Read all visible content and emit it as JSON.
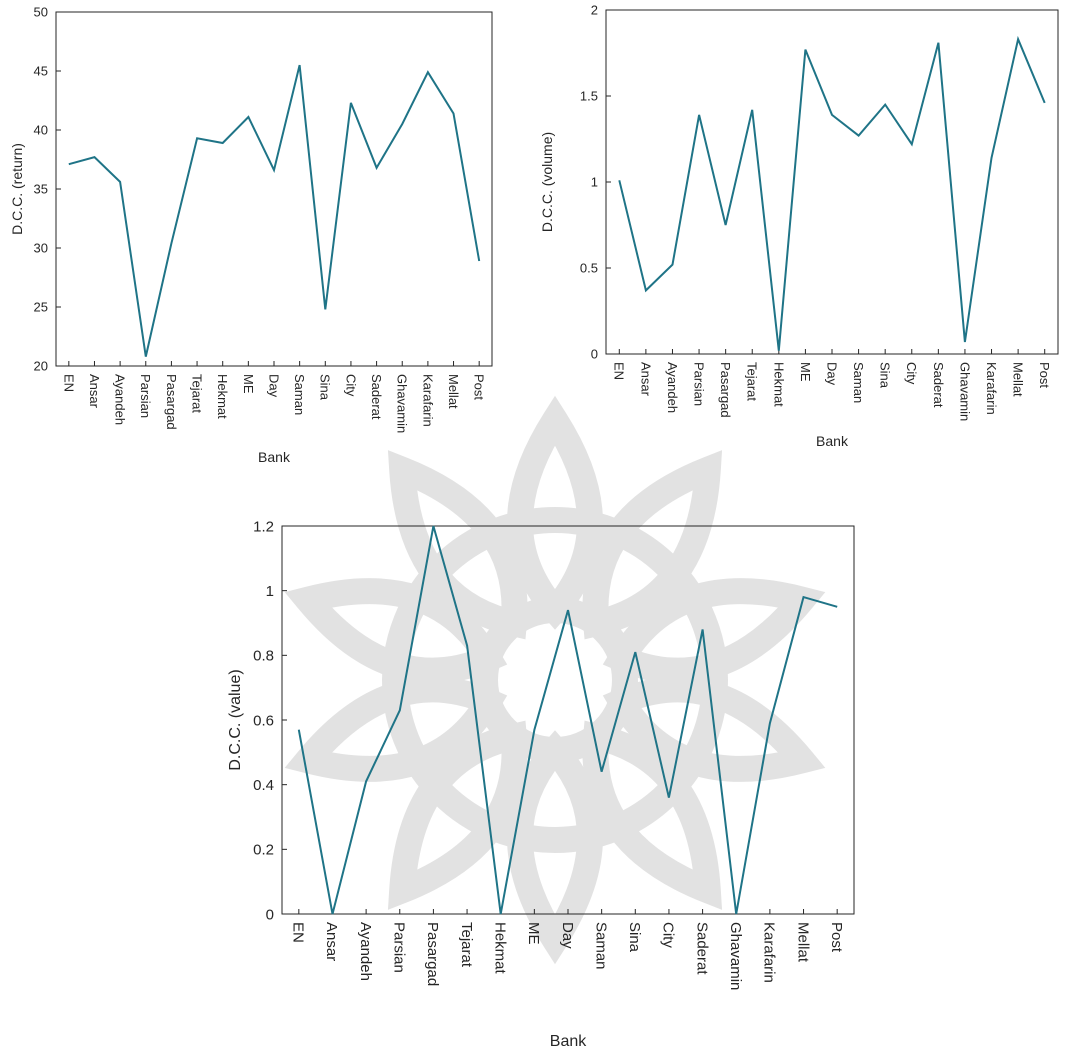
{
  "chart_data": [
    {
      "type": "line",
      "xlabel": "Bank",
      "ylabel": "D.C.C. (return)",
      "categories": [
        "EN",
        "Ansar",
        "Ayandeh",
        "Parsian",
        "Pasargad",
        "Tejarat",
        "Hekmat",
        "ME",
        "Day",
        "Saman",
        "Sina",
        "City",
        "Saderat",
        "Ghavamin",
        "Karafarin",
        "Mellat",
        "Post"
      ],
      "values": [
        37.1,
        37.7,
        35.6,
        20.8,
        30.4,
        39.3,
        38.9,
        41.1,
        36.6,
        45.5,
        24.8,
        42.3,
        36.8,
        40.5,
        44.9,
        41.4,
        28.9
      ],
      "ylim": [
        20,
        50
      ],
      "yticks": [
        "20",
        "25",
        "30",
        "35",
        "40",
        "45",
        "50"
      ],
      "line_color": "#1f7487",
      "grid": false
    },
    {
      "type": "line",
      "xlabel": "Bank",
      "ylabel": "D.C.C. (volume)",
      "categories": [
        "EN",
        "Ansar",
        "Ayandeh",
        "Parsian",
        "Pasargad",
        "Tejarat",
        "Hekmat",
        "ME",
        "Day",
        "Saman",
        "Sina",
        "City",
        "Saderat",
        "Ghavamin",
        "Karafarin",
        "Mellat",
        "Post"
      ],
      "values": [
        1.01,
        0.37,
        0.52,
        1.39,
        0.75,
        1.42,
        0.02,
        1.77,
        1.39,
        1.27,
        1.45,
        1.22,
        1.81,
        0.07,
        1.14,
        1.83,
        1.46
      ],
      "ylim": [
        0,
        2
      ],
      "yticks": [
        "0",
        "0.5",
        "1",
        "1.5",
        "2"
      ],
      "line_color": "#1f7487",
      "grid": false
    },
    {
      "type": "line",
      "xlabel": "Bank",
      "ylabel": "D.C.C. (value)",
      "categories": [
        "EN",
        "Ansar",
        "Ayandeh",
        "Parsian",
        "Pasargad",
        "Tejarat",
        "Hekmat",
        "ME",
        "Day",
        "Saman",
        "Sina",
        "City",
        "Saderat",
        "Ghavamin",
        "Karafarin",
        "Mellat",
        "Post"
      ],
      "values": [
        0.57,
        0.0,
        0.41,
        0.63,
        1.2,
        0.83,
        0.0,
        0.57,
        0.94,
        0.44,
        0.81,
        0.36,
        0.88,
        0.0,
        0.59,
        0.98,
        0.95
      ],
      "ylim": [
        0,
        1.2
      ],
      "yticks": [
        "0",
        "0.2",
        "0.4",
        "0.6",
        "0.8",
        "1",
        "1.2"
      ],
      "line_color": "#1f7487",
      "grid": false
    }
  ]
}
